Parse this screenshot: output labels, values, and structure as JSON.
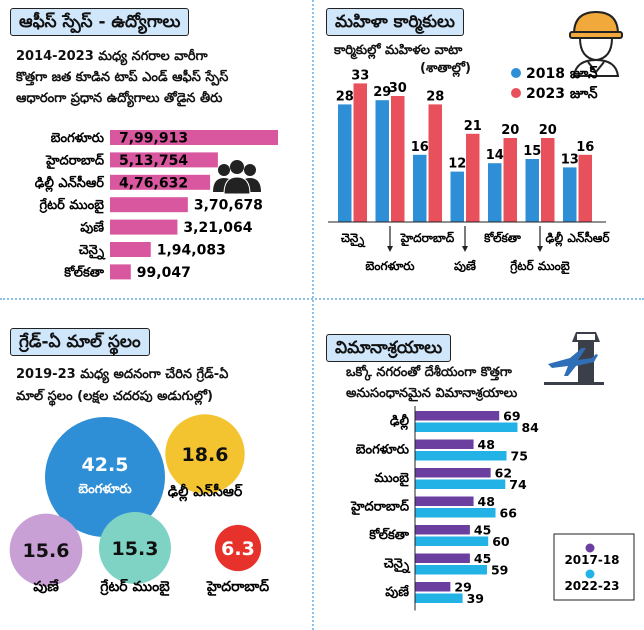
{
  "office": {
    "title": "ఆఫీస్ స్పేస్ - ఉద్యోగాలు",
    "subtitle_lines": [
      "2014-2023 మధ్య నగరాల వారీగా",
      "కొత్తగా జత కూడిన టాప్ ఎండ్ ఆఫీస్ స్పేస్",
      "ఆధారంగా ప్రధాన ఉద్యోగాలు తోడైన తీరు"
    ],
    "icon": "people-group-icon"
  },
  "women": {
    "title": "మహిళా కార్మికులు",
    "subtitle_lines": [
      "కార్మికుల్లో మహిళల వాటా",
      "(శాతాల్లో)"
    ],
    "icon": "woman-worker-helmet-icon"
  },
  "mall": {
    "title": "గ్రేడ్-ఏ మాల్ స్థలం",
    "subtitle_lines": [
      "2019-23 మధ్య అదనంగా చేరిన గ్రేడ్-ఏ",
      "మాల్ స్థలం (లక్షల చదరపు అడుగుల్లో)"
    ]
  },
  "airports": {
    "title": "విమానాశ్రయాలు",
    "subtitle_lines": [
      "ఒక్కో నగరంతో దేశీయంగా కొత్తగా",
      "అనుసంధానమైన విమానాశ్రయాలు"
    ],
    "icon": "airplane-control-tower-icon"
  },
  "colors": {
    "office_bar": "#d8579f",
    "blue": "#2f8fd6",
    "red": "#e8505b",
    "purple": "#6b3fa0",
    "cyan": "#22b2e6"
  },
  "chart_data": [
    {
      "id": "office",
      "type": "bar",
      "orientation": "horizontal",
      "categories": [
        "బెంగళూరు",
        "హైదరాబాద్",
        "ఢిల్లీ ఎన్‌సీఆర్",
        "గ్రేటర్ ముంబై",
        "పుణే",
        "చెన్నై",
        "కోల్‌కతా"
      ],
      "values": [
        799913,
        513754,
        476632,
        370678,
        321064,
        194083,
        99047
      ],
      "value_labels": [
        "7,99,913",
        "5,13,754",
        "4,76,632",
        "3,70,678",
        "3,21,064",
        "1,94,083",
        "99,047"
      ]
    },
    {
      "id": "women",
      "type": "bar",
      "categories": [
        "చెన్నై",
        "బెంగళూరు",
        "హైదరాబాద్",
        "పుణే",
        "కోల్‌కతా",
        "గ్రేటర్ ముంబై",
        "ఢిల్లీ ఎన్‌సీఆర్"
      ],
      "series": [
        {
          "name": "2018 జూన్",
          "values": [
            28,
            29,
            16,
            12,
            14,
            15,
            13
          ]
        },
        {
          "name": "2023 జూన్",
          "values": [
            33,
            30,
            28,
            21,
            20,
            20,
            16
          ]
        }
      ],
      "legend": "top-right",
      "ylim": [
        0,
        35
      ]
    },
    {
      "id": "mall",
      "type": "bubble",
      "categories": [
        "బెంగళూరు",
        "ఢిల్లీ ఎన్‌సీఆర్",
        "పుణే",
        "గ్రేటర్ ముంబై",
        "హైదరాబాద్"
      ],
      "values": [
        42.5,
        18.6,
        15.6,
        15.3,
        6.3
      ],
      "value_labels": [
        "42.5",
        "18.6",
        "15.6",
        "15.3",
        "6.3"
      ],
      "colors": [
        "#2f8fd6",
        "#f4c430",
        "#c9a0d6",
        "#7fd3c4",
        "#e6322b"
      ]
    },
    {
      "id": "airports",
      "type": "bar",
      "orientation": "horizontal",
      "categories": [
        "ఢిల్లీ",
        "బెంగళూరు",
        "ముంబై",
        "హైదరాబాద్",
        "కోల్‌కతా",
        "చెన్నై",
        "పుణే"
      ],
      "series": [
        {
          "name": "2017-18",
          "values": [
            69,
            48,
            62,
            48,
            45,
            45,
            29
          ]
        },
        {
          "name": "2022-23",
          "values": [
            84,
            75,
            74,
            66,
            60,
            59,
            39
          ]
        }
      ],
      "legend": "bottom-right"
    }
  ]
}
